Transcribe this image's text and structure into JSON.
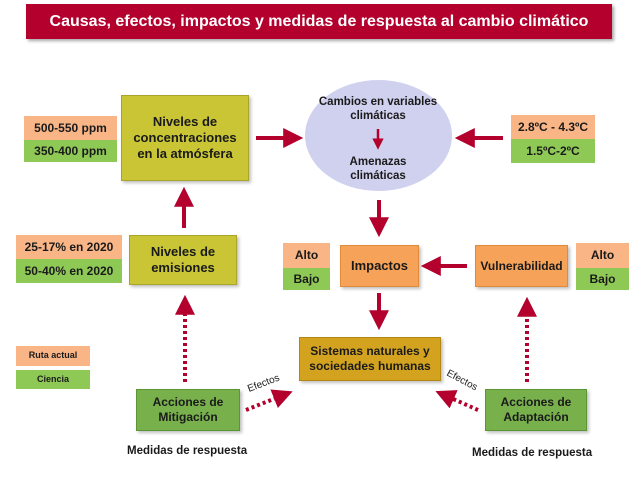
{
  "title": "Causas, efectos, impactos y medidas de respuesta al cambio climático",
  "concentrations": {
    "label": "Niveles de concentraciones en la atmósfera",
    "ruta_value": "500-550 ppm",
    "ciencia_value": "350-400 ppm"
  },
  "emissions": {
    "label": "Niveles de emisiones",
    "ruta_value": "25-17% en 2020",
    "ciencia_value": "50-40% en 2020"
  },
  "climate": {
    "changes_label": "Cambios en variables climáticas",
    "threats_label": "Amenazas climáticas",
    "ruta_value": "2.8ºC - 4.3ºC",
    "ciencia_value": "1.5ºC-2ºC"
  },
  "impacts": {
    "label": "Impactos",
    "alto": "Alto",
    "bajo": "Bajo"
  },
  "vulnerability": {
    "label": "Vulnerabilidad",
    "alto": "Alto",
    "bajo": "Bajo"
  },
  "systems": {
    "label": "Sistemas naturales y sociedades humanas"
  },
  "mitigation": {
    "label": "Acciones de Mitigación",
    "caption": "Medidas de respuesta",
    "effects": "Efectos"
  },
  "adaptation": {
    "label": "Acciones de Adaptación",
    "caption": "Medidas de respuesta",
    "effects": "Efectos"
  },
  "legend": {
    "ruta": "Ruta actual",
    "ciencia": "Ciencia"
  },
  "colors": {
    "title_bg": "#b3002d",
    "arrow": "#b3002d",
    "olive": "#c9c535",
    "ruta_actual": "#f9b586",
    "ciencia": "#8fc955",
    "impactos": "#f6a259",
    "sistemas": "#d3a320",
    "acciones": "#78b14c",
    "ellipse": "#cfd1ef"
  }
}
